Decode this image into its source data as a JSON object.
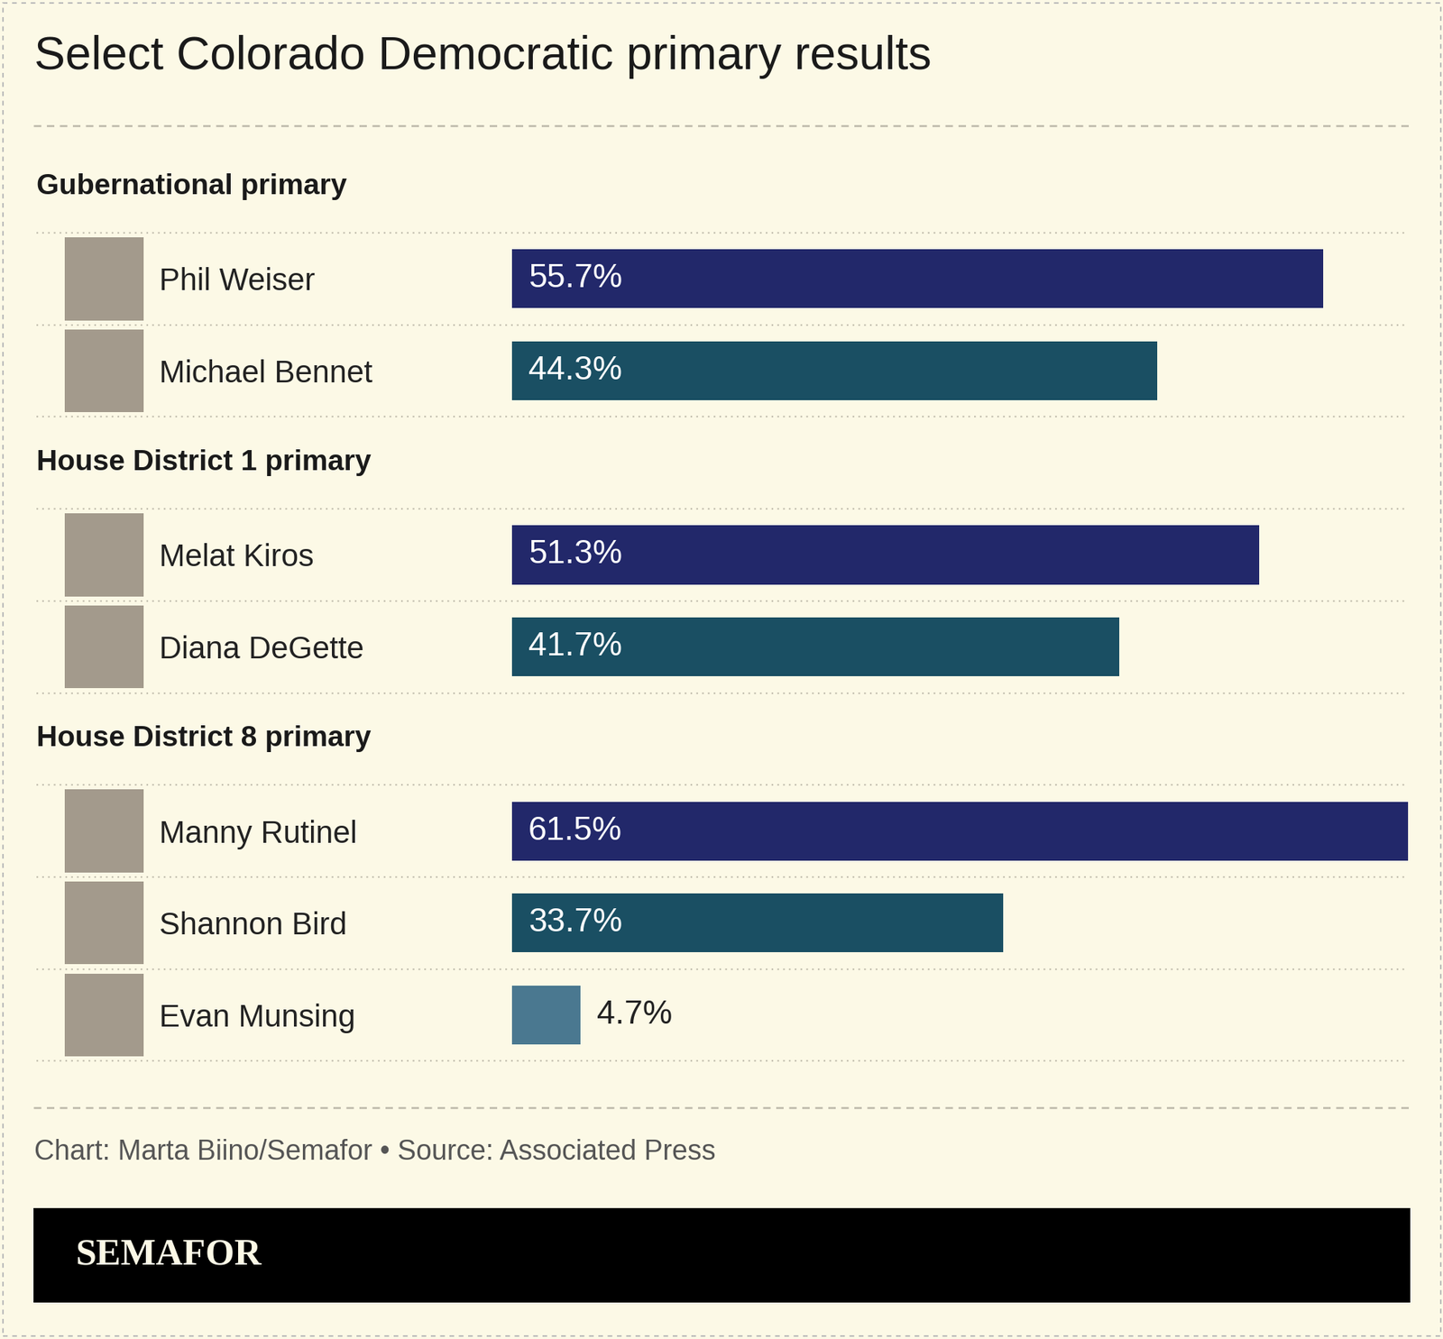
{
  "title": "Select Colorado Democratic primary results",
  "chart_data": [
    {
      "type": "bar",
      "orientation": "horizontal",
      "title": "Gubernational primary",
      "categories": [
        "Phil Weiser",
        "Michael Bennet"
      ],
      "values": [
        55.7,
        44.3
      ],
      "value_labels": [
        "55.7%",
        "44.3%"
      ],
      "colors": [
        "#22286a",
        "#1a4f63"
      ],
      "xlim": [
        0,
        61.5
      ],
      "data_labels": true,
      "tick_labels": "y"
    },
    {
      "type": "bar",
      "orientation": "horizontal",
      "title": "House District 1 primary",
      "categories": [
        "Melat Kiros",
        "Diana DeGette"
      ],
      "values": [
        51.3,
        41.7
      ],
      "value_labels": [
        "51.3%",
        "41.7%"
      ],
      "colors": [
        "#22286a",
        "#1a4f63"
      ],
      "xlim": [
        0,
        61.5
      ],
      "data_labels": true,
      "tick_labels": "y"
    },
    {
      "type": "bar",
      "orientation": "horizontal",
      "title": "House District 8 primary",
      "categories": [
        "Manny Rutinel",
        "Shannon Bird",
        "Evan Munsing"
      ],
      "values": [
        61.5,
        33.7,
        4.7
      ],
      "value_labels": [
        "61.5%",
        "33.7%",
        "4.7%"
      ],
      "colors": [
        "#22286a",
        "#1a4f63",
        "#4a7890"
      ],
      "xlim": [
        0,
        61.5
      ],
      "data_labels": true,
      "tick_labels": "y"
    }
  ],
  "source": "Chart: Marta Biino/Semafor • Source: Associated Press",
  "brand": "SEMAFOR"
}
